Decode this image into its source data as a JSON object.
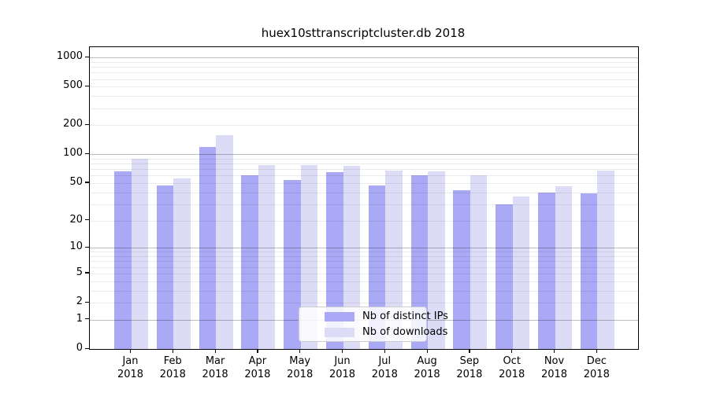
{
  "title": "huex10sttranscriptcluster.db 2018",
  "chart_data": {
    "type": "bar",
    "title": "huex10sttranscriptcluster.db 2018",
    "categories": [
      "Jan 2018",
      "Feb 2018",
      "Mar 2018",
      "Apr 2018",
      "May 2018",
      "Jun 2018",
      "Jul 2018",
      "Aug 2018",
      "Sep 2018",
      "Oct 2018",
      "Nov 2018",
      "Dec 2018"
    ],
    "series": [
      {
        "name": "Nb of distinct IPs",
        "color": "#a9a9f6",
        "values": [
          66,
          47,
          120,
          61,
          54,
          65,
          47,
          61,
          42,
          30,
          40,
          39
        ]
      },
      {
        "name": "Nb of downloads",
        "color": "#dcdcf7",
        "values": [
          90,
          56,
          158,
          78,
          78,
          76,
          68,
          66,
          61,
          36,
          46,
          68
        ]
      }
    ],
    "xlabel": "",
    "ylabel": "",
    "yscale": "log1p",
    "ylim": [
      0,
      1280
    ],
    "yticks": [
      0,
      1,
      2,
      5,
      10,
      20,
      50,
      100,
      200,
      500,
      1000
    ],
    "grid": {
      "major_lines": [
        1,
        10,
        100,
        1000
      ],
      "minor_subs": [
        2,
        3,
        4,
        5,
        6,
        7,
        8,
        9
      ],
      "minor_decades": [
        1,
        10,
        100
      ]
    },
    "legend_position": "lower center",
    "colors": {
      "axis_border": "#000000",
      "major_grid": "#b5b5b5",
      "minor_grid": "#e8e8e8",
      "background": "#ffffff",
      "legend_border": "#cccccc"
    }
  }
}
